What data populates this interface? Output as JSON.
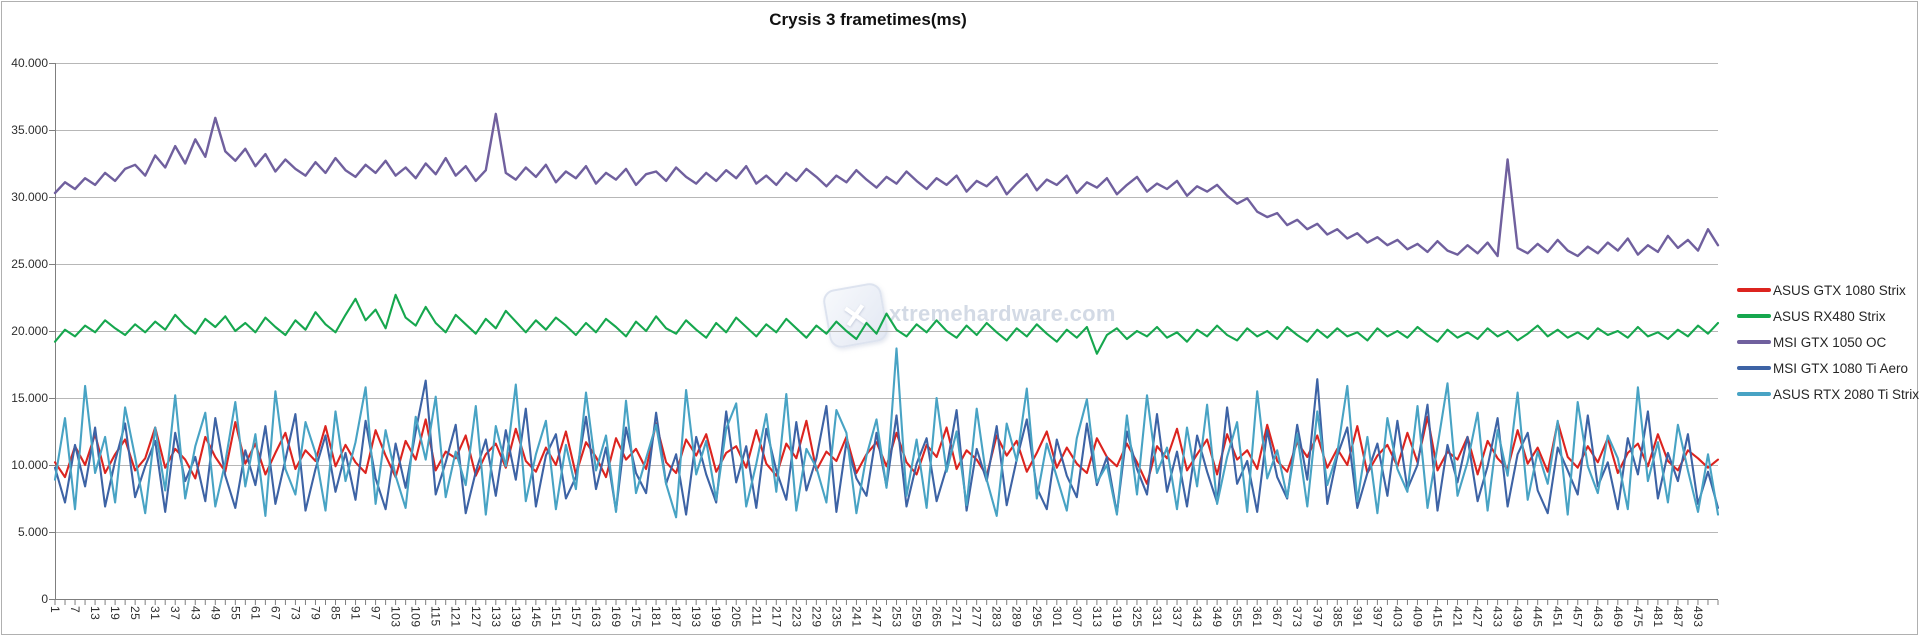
{
  "title": "Crysis 3 frametimes(ms)",
  "watermark": {
    "text": "xtremehardware.com",
    "logo_glyph": "✕"
  },
  "colors": {
    "gridline": "#b7b7b7",
    "axis": "#7f7f7f",
    "tick_label": "#2e2e2e",
    "title": "#111111",
    "red": "#dc241f",
    "green": "#16a74e",
    "purple": "#70609e",
    "dark_blue": "#3d63a5",
    "light_blue": "#48a3c4"
  },
  "chart_data": {
    "type": "line",
    "title": "Crysis 3 frametimes(ms)",
    "xlabel": "",
    "ylabel": "",
    "ylim": [
      0,
      40
    ],
    "grid": true,
    "legend_position": "right",
    "y_ticks": [
      "40.000",
      "35.000",
      "30.000",
      "25.000",
      "20.000",
      "15.000",
      "10.000",
      "5.000",
      "0"
    ],
    "y_tick_values": [
      40,
      35,
      30,
      25,
      20,
      15,
      10,
      5,
      0
    ],
    "x_tick_labels": [
      1,
      7,
      13,
      19,
      25,
      31,
      37,
      43,
      49,
      55,
      61,
      67,
      73,
      79,
      85,
      91,
      97,
      103,
      109,
      115,
      121,
      127,
      133,
      139,
      145,
      151,
      157,
      163,
      169,
      175,
      181,
      187,
      193,
      199,
      205,
      211,
      217,
      223,
      229,
      235,
      241,
      247,
      253,
      259,
      265,
      271,
      277,
      283,
      289,
      295,
      301,
      307,
      313,
      319,
      325,
      331,
      337,
      343,
      349,
      355,
      361,
      367,
      373,
      379,
      385,
      391,
      397,
      403,
      409,
      415,
      421,
      427,
      433,
      439,
      445,
      451,
      457,
      463,
      469,
      475,
      481,
      487,
      493
    ],
    "x_first_point": 1,
    "x_point_step": 3,
    "x_last_point": 499,
    "series": [
      {
        "name": "ASUS GTX 1080 Strix",
        "color": "#dc241f",
        "values": [
          10.2,
          9.1,
          11.4,
          10.0,
          12.3,
          9.4,
          10.8,
          11.9,
          9.6,
          10.5,
          12.8,
          9.8,
          11.2,
          10.4,
          9.0,
          12.1,
          10.6,
          9.5,
          13.2,
          10.1,
          11.6,
          9.3,
          10.9,
          12.4,
          9.7,
          11.1,
          10.3,
          12.9,
          9.9,
          11.5,
          10.2,
          9.4,
          12.6,
          10.7,
          9.1,
          11.8,
          10.4,
          13.4,
          9.6,
          11.0,
          10.5,
          12.2,
          9.2,
          10.8,
          11.6,
          9.8,
          12.7,
          10.3,
          9.5,
          11.3,
          10.0,
          12.5,
          9.3,
          11.7,
          10.6,
          9.1,
          12.0,
          10.4,
          11.2,
          9.7,
          13.1,
          10.2,
          9.4,
          11.9,
          10.7,
          12.3,
          9.5,
          10.9,
          11.4,
          9.8,
          12.6,
          10.1,
          9.2,
          11.6,
          10.5,
          13.3,
          9.6,
          11.0,
          10.3,
          12.1,
          9.4,
          10.8,
          11.7,
          9.9,
          12.4,
          10.2,
          9.3,
          11.5,
          10.6,
          12.8,
          9.7,
          11.1,
          10.4,
          9.2,
          12.2,
          10.7,
          11.8,
          9.5,
          10.9,
          12.5,
          9.8,
          11.3,
          10.1,
          9.4,
          12.0,
          10.6,
          9.9,
          11.6,
          10.2,
          8.6,
          11.4,
          10.5,
          12.7,
          9.6,
          10.8,
          11.9,
          9.3,
          12.3,
          10.4,
          11.1,
          9.7,
          13.0,
          10.3,
          9.5,
          11.7,
          10.6,
          12.2,
          9.8,
          11.2,
          10.0,
          12.9,
          9.4,
          10.7,
          11.5,
          9.9,
          12.4,
          10.2,
          13.6,
          9.6,
          11.0,
          10.4,
          12.1,
          9.3,
          11.8,
          10.5,
          9.7,
          12.6,
          10.1,
          11.3,
          9.5,
          13.2,
          10.6,
          9.8,
          11.4,
          10.2,
          12.0,
          9.4,
          10.9,
          11.6,
          9.9,
          12.3,
          10.3,
          9.6,
          11.1,
          10.5,
          9.8,
          10.4
        ]
      },
      {
        "name": "ASUS RX480 Strix",
        "color": "#16a74e",
        "values": [
          19.2,
          20.1,
          19.6,
          20.4,
          19.9,
          20.8,
          20.2,
          19.7,
          20.5,
          19.9,
          20.7,
          20.1,
          21.2,
          20.4,
          19.8,
          20.9,
          20.3,
          21.1,
          20.0,
          20.6,
          19.9,
          21.0,
          20.3,
          19.7,
          20.8,
          20.1,
          21.4,
          20.5,
          19.9,
          21.2,
          22.4,
          20.8,
          21.6,
          20.2,
          22.7,
          21.0,
          20.4,
          21.8,
          20.6,
          19.9,
          21.2,
          20.5,
          19.8,
          20.9,
          20.2,
          21.5,
          20.7,
          19.9,
          20.8,
          20.1,
          21.0,
          20.4,
          19.7,
          20.6,
          19.9,
          20.9,
          20.3,
          19.6,
          20.7,
          20.0,
          21.1,
          20.2,
          19.8,
          20.8,
          20.1,
          19.5,
          20.6,
          19.9,
          21.0,
          20.3,
          19.6,
          20.5,
          19.9,
          20.9,
          20.2,
          19.5,
          20.4,
          19.8,
          20.7,
          20.0,
          19.4,
          20.6,
          19.8,
          21.3,
          20.1,
          19.6,
          20.5,
          19.9,
          20.8,
          20.0,
          19.5,
          20.4,
          19.7,
          20.6,
          19.9,
          19.3,
          20.2,
          19.6,
          20.5,
          19.8,
          19.2,
          20.1,
          19.5,
          20.3,
          18.3,
          19.7,
          20.2,
          19.4,
          20.0,
          19.6,
          20.3,
          19.5,
          19.9,
          19.2,
          20.1,
          19.6,
          20.4,
          19.7,
          19.3,
          20.2,
          19.6,
          20.0,
          19.4,
          20.3,
          19.7,
          19.2,
          20.1,
          19.5,
          20.2,
          19.6,
          19.9,
          19.3,
          20.2,
          19.6,
          20.0,
          19.5,
          20.3,
          19.7,
          19.2,
          20.1,
          19.5,
          19.9,
          19.4,
          20.2,
          19.6,
          20.0,
          19.3,
          19.8,
          20.4,
          19.6,
          20.1,
          19.5,
          19.9,
          19.4,
          20.2,
          19.7,
          20.0,
          19.5,
          20.3,
          19.6,
          19.9,
          19.4,
          20.1,
          19.6,
          20.4,
          19.8,
          20.6
        ]
      },
      {
        "name": "MSI GTX 1050 OC",
        "color": "#70609e",
        "values": [
          30.3,
          31.1,
          30.6,
          31.4,
          30.9,
          31.8,
          31.2,
          32.1,
          32.4,
          31.6,
          33.1,
          32.2,
          33.8,
          32.5,
          34.3,
          33.0,
          35.9,
          33.4,
          32.7,
          33.6,
          32.3,
          33.2,
          31.9,
          32.8,
          32.1,
          31.6,
          32.6,
          31.8,
          32.9,
          32.0,
          31.5,
          32.4,
          31.8,
          32.7,
          31.6,
          32.2,
          31.4,
          32.5,
          31.7,
          32.9,
          31.6,
          32.3,
          31.2,
          32.0,
          36.2,
          31.8,
          31.3,
          32.2,
          31.5,
          32.4,
          31.1,
          31.9,
          31.4,
          32.3,
          31.0,
          31.8,
          31.3,
          32.1,
          30.9,
          31.7,
          31.9,
          31.2,
          32.2,
          31.5,
          31.0,
          31.8,
          31.2,
          32.0,
          31.4,
          32.3,
          31.0,
          31.6,
          30.9,
          31.8,
          31.2,
          32.1,
          31.5,
          30.8,
          31.6,
          31.1,
          32.0,
          31.3,
          30.7,
          31.5,
          31.0,
          31.9,
          31.2,
          30.6,
          31.4,
          30.9,
          31.6,
          30.4,
          31.2,
          30.8,
          31.5,
          30.2,
          31.0,
          31.7,
          30.5,
          31.3,
          30.9,
          31.6,
          30.3,
          31.1,
          30.7,
          31.4,
          30.2,
          30.9,
          31.5,
          30.4,
          31.0,
          30.6,
          31.2,
          30.1,
          30.8,
          30.4,
          30.9,
          30.1,
          29.5,
          29.9,
          28.9,
          28.5,
          28.8,
          27.9,
          28.3,
          27.6,
          28.0,
          27.2,
          27.6,
          26.9,
          27.3,
          26.6,
          27.0,
          26.4,
          26.8,
          26.1,
          26.5,
          25.9,
          26.7,
          26.0,
          25.7,
          26.4,
          25.8,
          26.6,
          25.6,
          32.8,
          26.2,
          25.8,
          26.5,
          25.9,
          26.8,
          26.0,
          25.6,
          26.3,
          25.8,
          26.6,
          26.0,
          26.9,
          25.7,
          26.4,
          25.9,
          27.1,
          26.2,
          26.8,
          26.0,
          27.6,
          26.4
        ]
      },
      {
        "name": "MSI GTX 1080 Ti Aero",
        "color": "#3d63a5",
        "values": [
          9.8,
          7.2,
          11.5,
          8.4,
          12.8,
          6.9,
          10.3,
          13.1,
          7.6,
          9.9,
          11.8,
          6.5,
          12.4,
          8.8,
          10.6,
          7.3,
          13.5,
          9.2,
          6.8,
          11.1,
          8.5,
          12.9,
          7.1,
          10.4,
          13.8,
          6.6,
          9.7,
          12.2,
          8.0,
          10.9,
          7.4,
          13.3,
          9.0,
          6.7,
          11.6,
          8.3,
          12.5,
          16.3,
          7.8,
          10.2,
          13.0,
          6.4,
          9.5,
          11.9,
          7.7,
          12.6,
          8.9,
          14.2,
          6.9,
          10.7,
          12.3,
          7.5,
          9.1,
          13.6,
          8.2,
          11.3,
          6.6,
          12.8,
          9.4,
          7.9,
          13.9,
          8.6,
          10.8,
          6.3,
          12.1,
          9.3,
          7.2,
          14.0,
          8.7,
          11.4,
          6.8,
          12.7,
          9.6,
          7.4,
          13.2,
          8.1,
          10.5,
          14.4,
          6.5,
          11.7,
          9.0,
          7.7,
          12.4,
          8.4,
          13.7,
          6.9,
          10.1,
          12.0,
          7.3,
          9.8,
          14.1,
          6.6,
          11.2,
          8.8,
          12.9,
          7.0,
          10.4,
          13.4,
          8.3,
          6.7,
          11.9,
          9.2,
          7.6,
          13.1,
          8.5,
          10.6,
          6.4,
          12.5,
          9.7,
          7.8,
          13.8,
          8.0,
          11.0,
          6.9,
          12.2,
          9.5,
          7.2,
          14.3,
          8.6,
          10.3,
          6.5,
          12.6,
          9.1,
          7.5,
          13.0,
          8.9,
          16.4,
          7.1,
          10.7,
          12.8,
          6.8,
          9.4,
          11.6,
          7.7,
          13.3,
          8.2,
          10.0,
          14.5,
          6.6,
          11.5,
          8.7,
          12.1,
          7.3,
          9.9,
          13.5,
          6.9,
          10.8,
          12.4,
          8.1,
          6.4,
          11.3,
          9.6,
          7.8,
          13.7,
          8.4,
          10.2,
          6.7,
          12.0,
          9.3,
          14.0,
          7.5,
          10.9,
          8.8,
          12.3,
          7.1,
          9.5,
          6.8
        ]
      },
      {
        "name": "ASUS RTX 2080 Ti Strix",
        "color": "#48a3c4",
        "values": [
          8.9,
          13.5,
          6.7,
          15.9,
          9.4,
          12.1,
          7.2,
          14.3,
          10.6,
          6.4,
          12.8,
          8.1,
          15.2,
          7.5,
          11.4,
          13.9,
          6.9,
          10.2,
          14.7,
          8.4,
          12.3,
          6.2,
          15.5,
          9.7,
          7.8,
          13.2,
          10.9,
          6.6,
          14.0,
          8.8,
          11.7,
          15.8,
          7.1,
          12.6,
          9.2,
          6.8,
          13.6,
          10.4,
          15.1,
          7.6,
          11.0,
          8.5,
          14.4,
          6.3,
          12.9,
          9.9,
          16.0,
          7.3,
          10.8,
          13.3,
          6.7,
          11.5,
          8.2,
          15.4,
          9.6,
          12.2,
          6.5,
          14.8,
          7.9,
          10.5,
          13.0,
          8.6,
          6.1,
          15.6,
          9.3,
          11.8,
          7.4,
          12.7,
          14.6,
          6.9,
          10.1,
          13.8,
          8.0,
          15.3,
          6.6,
          11.2,
          9.8,
          7.2,
          14.1,
          12.4,
          6.4,
          10.7,
          13.4,
          8.3,
          18.7,
          7.7,
          11.9,
          6.8,
          15.0,
          9.5,
          12.5,
          7.0,
          14.2,
          8.9,
          6.2,
          13.1,
          10.3,
          15.7,
          7.5,
          11.6,
          9.1,
          6.6,
          12.0,
          14.9,
          8.7,
          10.0,
          6.3,
          13.7,
          7.8,
          15.2,
          9.4,
          11.3,
          6.7,
          12.8,
          8.4,
          14.5,
          7.1,
          10.6,
          13.2,
          6.5,
          15.5,
          9.0,
          11.1,
          7.6,
          12.3,
          6.9,
          14.0,
          8.5,
          10.9,
          15.9,
          7.3,
          12.1,
          6.4,
          13.5,
          9.7,
          8.0,
          14.4,
          6.8,
          11.4,
          16.1,
          7.7,
          10.2,
          13.9,
          6.6,
          12.6,
          9.2,
          15.4,
          7.4,
          11.0,
          8.6,
          13.3,
          6.3,
          14.7,
          9.9,
          7.9,
          12.2,
          10.5,
          6.7,
          15.8,
          8.8,
          11.7,
          7.2,
          13.0,
          9.6,
          6.5,
          10.8,
          6.3
        ]
      }
    ]
  }
}
